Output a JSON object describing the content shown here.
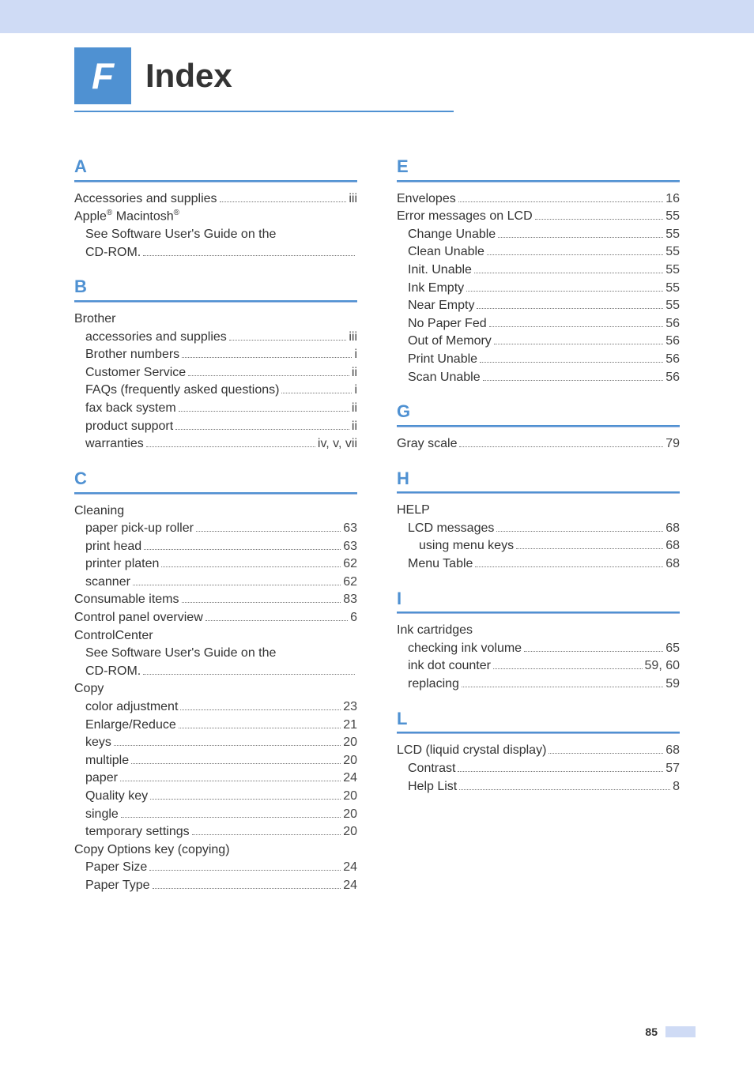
{
  "page": {
    "badge_letter": "F",
    "title": "Index",
    "footer_page": "85"
  },
  "sections": {
    "A": [
      {
        "label": "Accessories and supplies",
        "page": "iii",
        "indent": 0
      },
      {
        "label": "Apple® Macintosh®",
        "page": "",
        "indent": 0,
        "nodots": true
      },
      {
        "label": "See Software User's Guide on the",
        "page": "",
        "indent": 1,
        "nodots": true
      },
      {
        "label": "CD-ROM.",
        "page": "",
        "indent": 1
      }
    ],
    "B": [
      {
        "label": "Brother",
        "page": "",
        "indent": 0,
        "nodots": true
      },
      {
        "label": "accessories and supplies",
        "page": "iii",
        "indent": 1
      },
      {
        "label": "Brother numbers",
        "page": "i",
        "indent": 1
      },
      {
        "label": "Customer Service",
        "page": "ii",
        "indent": 1
      },
      {
        "label": "FAQs (frequently asked questions)",
        "page": "i",
        "indent": 1
      },
      {
        "label": "fax back system",
        "page": "ii",
        "indent": 1
      },
      {
        "label": "product support",
        "page": "ii",
        "indent": 1
      },
      {
        "label": "warranties",
        "page": "iv, v, vii",
        "indent": 1
      }
    ],
    "C": [
      {
        "label": "Cleaning",
        "page": "",
        "indent": 0,
        "nodots": true
      },
      {
        "label": "paper pick-up roller",
        "page": "63",
        "indent": 1
      },
      {
        "label": "print head",
        "page": "63",
        "indent": 1
      },
      {
        "label": "printer platen",
        "page": "62",
        "indent": 1
      },
      {
        "label": "scanner",
        "page": "62",
        "indent": 1
      },
      {
        "label": "Consumable items",
        "page": "83",
        "indent": 0
      },
      {
        "label": "Control panel overview",
        "page": "6",
        "indent": 0
      },
      {
        "label": "ControlCenter",
        "page": "",
        "indent": 0,
        "nodots": true
      },
      {
        "label": "See Software User's Guide on the",
        "page": "",
        "indent": 1,
        "nodots": true
      },
      {
        "label": "CD-ROM.",
        "page": "",
        "indent": 1
      },
      {
        "label": "Copy",
        "page": "",
        "indent": 0,
        "nodots": true
      },
      {
        "label": "color adjustment",
        "page": "23",
        "indent": 1
      },
      {
        "label": "Enlarge/Reduce",
        "page": "21",
        "indent": 1
      },
      {
        "label": "keys",
        "page": "20",
        "indent": 1
      },
      {
        "label": "multiple",
        "page": "20",
        "indent": 1
      },
      {
        "label": "paper",
        "page": "24",
        "indent": 1
      },
      {
        "label": "Quality key",
        "page": "20",
        "indent": 1
      },
      {
        "label": "single",
        "page": "20",
        "indent": 1
      },
      {
        "label": "temporary settings",
        "page": "20",
        "indent": 1
      },
      {
        "label": "Copy Options key (copying)",
        "page": "",
        "indent": 0,
        "nodots": true
      },
      {
        "label": "Paper Size",
        "page": "24",
        "indent": 1
      },
      {
        "label": "Paper Type",
        "page": "24",
        "indent": 1
      }
    ],
    "E": [
      {
        "label": "Envelopes",
        "page": "16",
        "indent": 0
      },
      {
        "label": "Error messages on LCD",
        "page": "55",
        "indent": 0
      },
      {
        "label": "Change Unable",
        "page": "55",
        "indent": 1
      },
      {
        "label": "Clean Unable",
        "page": "55",
        "indent": 1
      },
      {
        "label": "Init. Unable",
        "page": "55",
        "indent": 1
      },
      {
        "label": "Ink Empty",
        "page": "55",
        "indent": 1
      },
      {
        "label": "Near Empty",
        "page": "55",
        "indent": 1
      },
      {
        "label": "No Paper Fed",
        "page": "56",
        "indent": 1
      },
      {
        "label": "Out of Memory",
        "page": "56",
        "indent": 1
      },
      {
        "label": "Print Unable",
        "page": "56",
        "indent": 1
      },
      {
        "label": "Scan Unable",
        "page": "56",
        "indent": 1
      }
    ],
    "G": [
      {
        "label": "Gray scale",
        "page": "79",
        "indent": 0
      }
    ],
    "H": [
      {
        "label": "HELP",
        "page": "",
        "indent": 0,
        "nodots": true
      },
      {
        "label": "LCD messages",
        "page": "68",
        "indent": 1
      },
      {
        "label": "using menu keys",
        "page": "68",
        "indent": 2
      },
      {
        "label": "Menu Table",
        "page": "68",
        "indent": 1
      }
    ],
    "I": [
      {
        "label": "Ink cartridges",
        "page": "",
        "indent": 0,
        "nodots": true
      },
      {
        "label": "checking ink volume",
        "page": "65",
        "indent": 1
      },
      {
        "label": "ink dot counter",
        "page": "59, 60",
        "indent": 1
      },
      {
        "label": "replacing",
        "page": "59",
        "indent": 1
      }
    ],
    "L": [
      {
        "label": "LCD (liquid crystal display)",
        "page": "68",
        "indent": 0
      },
      {
        "label": "Contrast",
        "page": "57",
        "indent": 1
      },
      {
        "label": "Help List",
        "page": "8",
        "indent": 1
      }
    ]
  },
  "layout": {
    "left_sections": [
      "A",
      "B",
      "C"
    ],
    "right_sections": [
      "E",
      "G",
      "H",
      "I",
      "L"
    ]
  },
  "colors": {
    "top_bar": "#cfdbf5",
    "badge_bg": "#4f91d2",
    "badge_fg": "#ffffff",
    "heading": "#4f91d2",
    "text": "#333333",
    "background": "#ffffff"
  },
  "typography": {
    "badge_fontsize": 46,
    "title_fontsize": 42,
    "section_letter_fontsize": 22,
    "body_fontsize": 16,
    "footer_fontsize": 14
  }
}
